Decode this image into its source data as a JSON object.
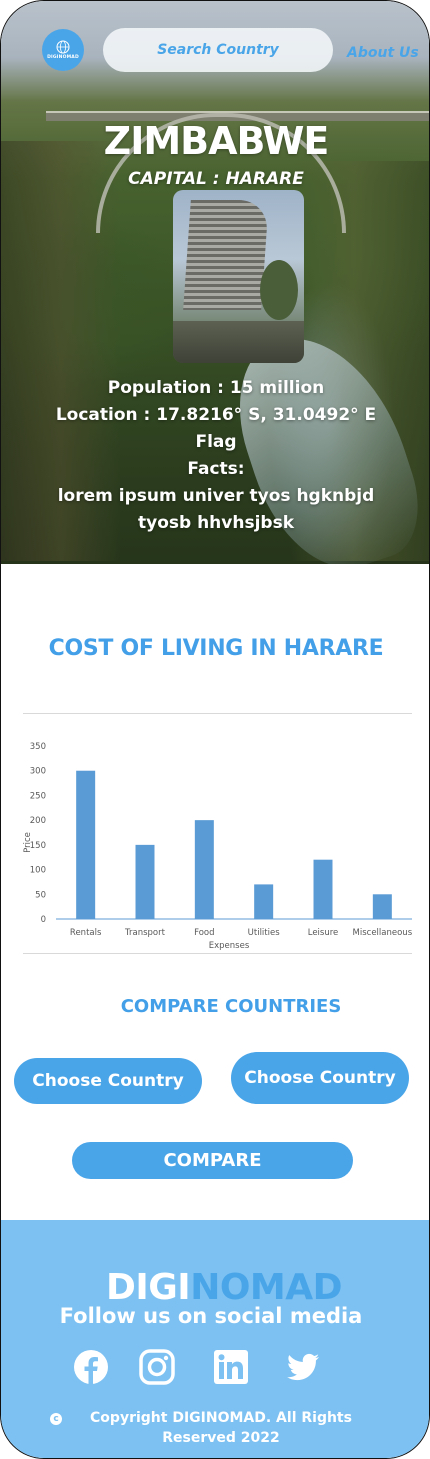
{
  "header": {
    "logo_text": "DIGINOMAD",
    "search_placeholder": "Search Country",
    "about_label": "About Us"
  },
  "hero": {
    "country": "ZIMBABWE",
    "capital": "CAPITAL : HARARE",
    "population": "Population : 15 million",
    "location": "Location : 17.8216° S, 31.0492° E",
    "flag_label": "Flag",
    "facts_label": "Facts:",
    "facts_text": "lorem ipsum univer tyos hgknbjd tyosb hhvhsjbsk"
  },
  "cost": {
    "title": "COST OF LIVING IN HARARE"
  },
  "chart_data": {
    "type": "bar",
    "categories": [
      "Rentals",
      "Transport",
      "Food",
      "Utilities",
      "Leisure",
      "Miscellaneous"
    ],
    "values": [
      300,
      150,
      200,
      70,
      120,
      50
    ],
    "title": "",
    "xlabel": "Expenses",
    "ylabel": "Price",
    "ylim": [
      0,
      350
    ],
    "yticks": [
      0,
      50,
      100,
      150,
      200,
      250,
      300,
      350
    ],
    "grid": false,
    "bar_color": "#5b9bd5"
  },
  "compare": {
    "title": "COMPARE COUNTRIES",
    "choose_1": "Choose Country",
    "choose_2": "Choose Country",
    "compare_label": "COMPARE"
  },
  "footer": {
    "brand_1": "DIGI",
    "brand_2": "NOMAD",
    "follow": "Follow us on social media",
    "social_icons": [
      "facebook-icon",
      "instagram-icon",
      "linkedin-icon",
      "twitter-icon"
    ],
    "copyright": "Copyright DIGINOMAD. All Rights Reserved 2022"
  },
  "colors": {
    "accent": "#4aa5e8",
    "footer_bg": "#7cc1f2"
  }
}
